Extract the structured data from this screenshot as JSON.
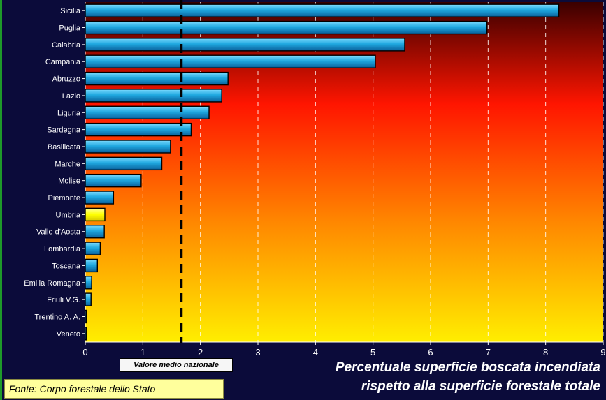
{
  "chart_data": {
    "type": "bar",
    "orientation": "horizontal",
    "categories": [
      "Sicilia",
      "Puglia",
      "Calabria",
      "Campania",
      "Abruzzo",
      "Lazio",
      "Liguria",
      "Sardegna",
      "Basilicata",
      "Marche",
      "Molise",
      "Piemonte",
      "Umbria",
      "Valle d'Aosta",
      "Lombardia",
      "Toscana",
      "Emilia Romagna",
      "Friuli V.G.",
      "Trentino A. A.",
      "Veneto"
    ],
    "values": [
      8.23,
      6.98,
      5.55,
      5.04,
      2.48,
      2.37,
      2.15,
      1.84,
      1.48,
      1.33,
      0.97,
      0.49,
      0.34,
      0.33,
      0.26,
      0.21,
      0.11,
      0.1,
      0.02,
      0.02
    ],
    "highlight": "Umbria",
    "xlim": [
      0,
      9
    ],
    "xticks": [
      "0",
      "1",
      "2",
      "3",
      "4",
      "5",
      "6",
      "7",
      "8",
      "9"
    ],
    "grid": true,
    "reference_line": {
      "value": 1.67,
      "label": "Valore medio nazionale"
    },
    "title_line1": "Percentuale superficie boscata incendiata",
    "title_line2": "rispetto alla superficie forestale totale",
    "source": "Fonte: Corpo forestale dello Stato",
    "colors": {
      "bar": "#1fa8e0",
      "bar_highlight": "#ffff00",
      "background_top": "#4a0000",
      "background_mid": "#ff2200",
      "background_bottom": "#ffee00",
      "page": "#0b0b3a"
    }
  }
}
